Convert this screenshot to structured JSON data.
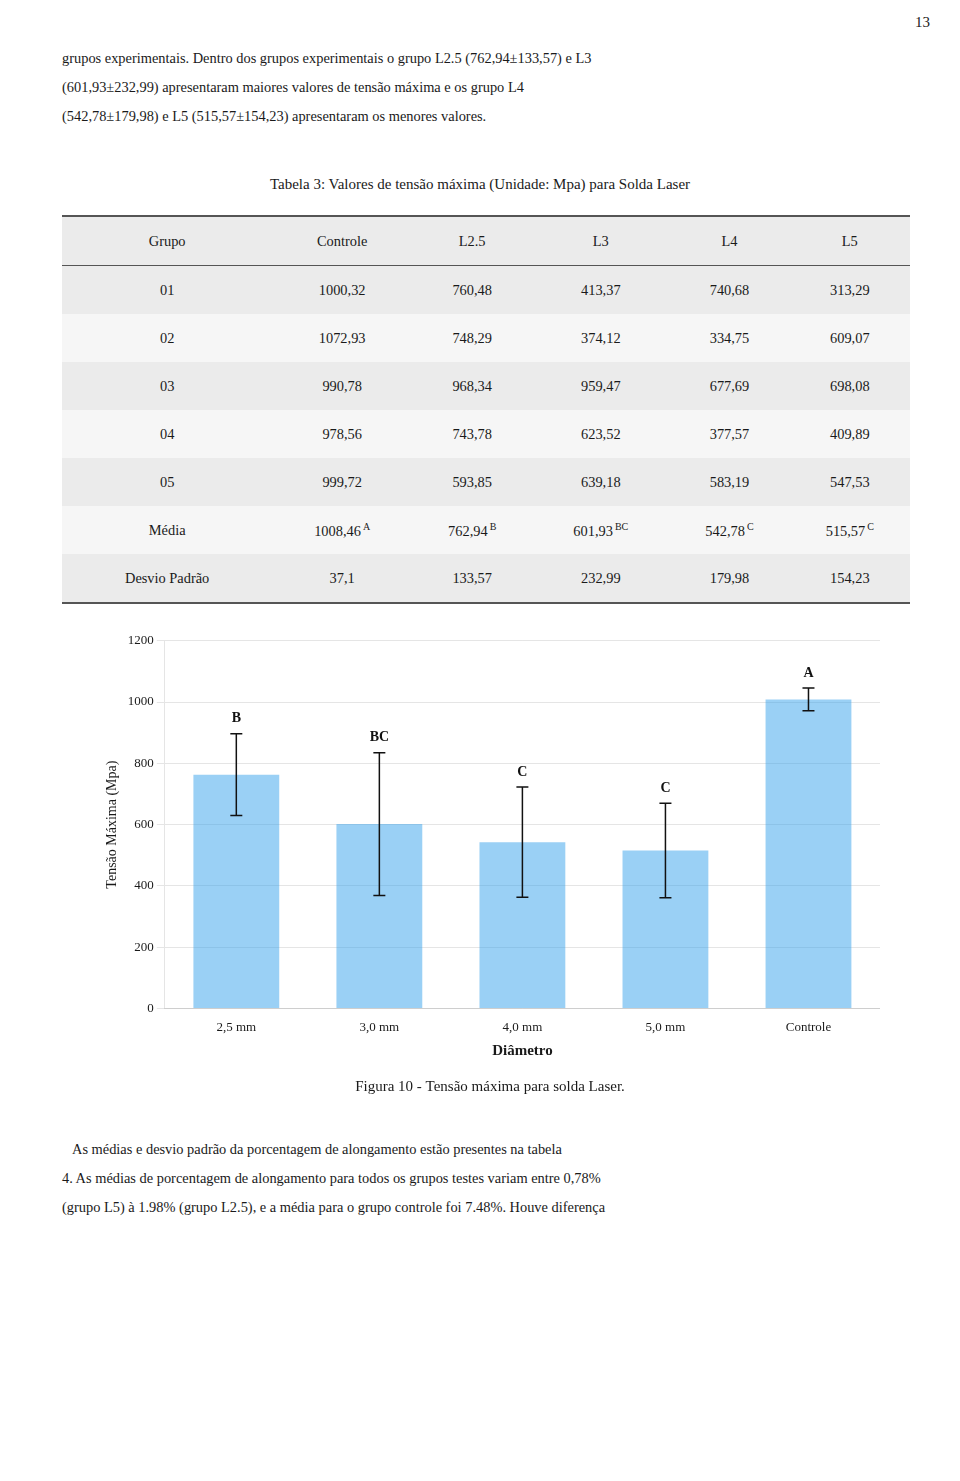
{
  "page_number": "13",
  "paragraphs_before": [
    "grupos experimentais. Dentro dos grupos experimentais o grupo L2.5 (762,94±133,57) e L3",
    "(601,93±232,99) apresentaram maiores valores de tensão máxima e os grupo L4",
    "(542,78±179,98) e L5 (515,57±154,23) apresentaram os menores valores."
  ],
  "table": {
    "title": "Tabela 3: Valores de tensão máxima (Unidade: Mpa) para Solda Laser",
    "headers": [
      "Grupo",
      "Controle",
      "L2.5",
      "L3",
      "L4",
      "L5"
    ],
    "rows": [
      [
        "01",
        "1000,32",
        "760,48",
        "413,37",
        "740,68",
        "313,29"
      ],
      [
        "02",
        "1072,93",
        "748,29",
        "374,12",
        "334,75",
        "609,07"
      ],
      [
        "03",
        "990,78",
        "968,34",
        "959,47",
        "677,69",
        "698,08"
      ],
      [
        "04",
        "978,56",
        "743,78",
        "623,52",
        "377,57",
        "409,89"
      ],
      [
        "05",
        "999,72",
        "593,85",
        "639,18",
        "583,19",
        "547,53"
      ]
    ],
    "mean_row": {
      "label": "Média",
      "values": [
        "1008,46",
        "762,94",
        "601,93",
        "542,78",
        "515,57"
      ],
      "superscripts": [
        "A",
        "B",
        "BC",
        "C",
        "C"
      ]
    },
    "sd_row": {
      "label": "Desvio Padrão",
      "values": [
        "37,1",
        "133,57",
        "232,99",
        "179,98",
        "154,23"
      ]
    }
  },
  "chart_data": {
    "type": "bar",
    "title": "Figura 10 - Tensão máxima para solda Laser.",
    "x_label": "Diâmetro",
    "y_label": "Tensão Máxima (Mpa)",
    "categories": [
      "2,5 mm",
      "3,0 mm",
      "4,0 mm",
      "5,0 mm",
      "Controle"
    ],
    "values": [
      762.94,
      601.93,
      542.78,
      515.57,
      1008.46
    ],
    "errors": [
      133.57,
      232.99,
      179.98,
      154.23,
      37.1
    ],
    "annotations": [
      "B",
      "BC",
      "C",
      "C",
      "A"
    ],
    "ylim": [
      0,
      1200
    ],
    "yticks": [
      0,
      200,
      400,
      600,
      800,
      1000,
      1200
    ],
    "grid": true
  },
  "paragraphs_after": [
    "   As médias e desvio padrão da porcentagem de alongamento estão presentes na tabela",
    "4. As médias de porcentagem de alongamento para todos os grupos testes variam entre 0,78%",
    "(grupo L5) à 1.98% (grupo L2.5), e a média para o grupo controle foi 7.48%. Houve diferença"
  ]
}
